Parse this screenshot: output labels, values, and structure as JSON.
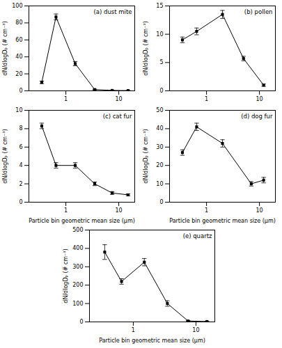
{
  "chart_data": [
    {
      "type": "line",
      "title": "(a) dust mite",
      "ylabel": "dN/dlogDₚ (# cm⁻³)",
      "x": [
        0.35,
        0.65,
        1.5,
        3.5,
        7.5,
        15.0
      ],
      "values": [
        10.0,
        87.0,
        32.0,
        1.5,
        0.5,
        0.3
      ],
      "errors": [
        1.5,
        3.5,
        2.5,
        0.5,
        0.15,
        0.1
      ],
      "xlim": [
        0.2,
        20
      ],
      "xticks": [
        1,
        10
      ],
      "log": "x",
      "ylim": [
        0,
        100
      ],
      "yticks": [
        0,
        20,
        40,
        60,
        80,
        100
      ],
      "color": "black",
      "marker": "square",
      "grid": false
    },
    {
      "type": "line",
      "title": "(b) pollen",
      "ylabel": "dN/dlogDₚ (# cm⁻³)",
      "x": [
        0.35,
        0.65,
        2.0,
        5.0,
        12.0
      ],
      "values": [
        9.0,
        10.5,
        13.5,
        5.7,
        1.0
      ],
      "errors": [
        0.5,
        0.6,
        0.7,
        0.4,
        0.2
      ],
      "xlim": [
        0.2,
        20
      ],
      "xticks": [
        1,
        10
      ],
      "log": "x",
      "ylim": [
        0,
        15
      ],
      "yticks": [
        0,
        5,
        10,
        15
      ],
      "color": "black",
      "marker": "square",
      "grid": false
    },
    {
      "type": "line",
      "title": "(c) cat fur",
      "xlabel": "Particle bin geometric mean size (μm)",
      "ylabel": "dN/dlogDₚ (# cm⁻³)",
      "x": [
        0.35,
        0.65,
        1.5,
        3.5,
        7.5,
        15.0
      ],
      "values": [
        8.3,
        4.0,
        4.0,
        2.0,
        1.0,
        0.8
      ],
      "errors": [
        0.3,
        0.3,
        0.3,
        0.2,
        0.15,
        0.1
      ],
      "xlim": [
        0.2,
        20
      ],
      "xticks": [
        1,
        10
      ],
      "log": "x",
      "ylim": [
        0,
        10
      ],
      "yticks": [
        0,
        2,
        4,
        6,
        8,
        10
      ],
      "color": "black",
      "marker": "square",
      "grid": false
    },
    {
      "type": "line",
      "title": "(d) dog fur",
      "xlabel": "Particle bin geometric mean size (μm)",
      "ylabel": "dN/dlogDₚ (# cm⁻³)",
      "x": [
        0.35,
        0.65,
        2.0,
        7.0,
        12.0
      ],
      "values": [
        27.0,
        41.0,
        32.0,
        10.0,
        12.0
      ],
      "errors": [
        1.5,
        2.0,
        2.0,
        1.2,
        1.5
      ],
      "xlim": [
        0.2,
        20
      ],
      "xticks": [
        1,
        10
      ],
      "log": "x",
      "ylim": [
        0,
        50
      ],
      "yticks": [
        0,
        10,
        20,
        30,
        40,
        50
      ],
      "color": "black",
      "marker": "square",
      "grid": false
    },
    {
      "type": "line",
      "title": "(e) quartz",
      "xlabel": "Particle bin geometric mean size (μm)",
      "ylabel": "dN/dlogDₚ (# cm⁻³)",
      "x": [
        0.35,
        0.65,
        1.5,
        3.5,
        7.5,
        15.0
      ],
      "values": [
        380.0,
        220.0,
        325.0,
        100.0,
        5.0,
        2.0
      ],
      "errors": [
        40.0,
        15.0,
        20.0,
        15.0,
        2.0,
        1.0
      ],
      "xlim": [
        0.2,
        20
      ],
      "xticks": [
        1,
        10
      ],
      "log": "x",
      "ylim": [
        0,
        500
      ],
      "yticks": [
        0,
        100,
        200,
        300,
        400,
        500
      ],
      "color": "black",
      "marker": "square",
      "grid": false
    }
  ]
}
